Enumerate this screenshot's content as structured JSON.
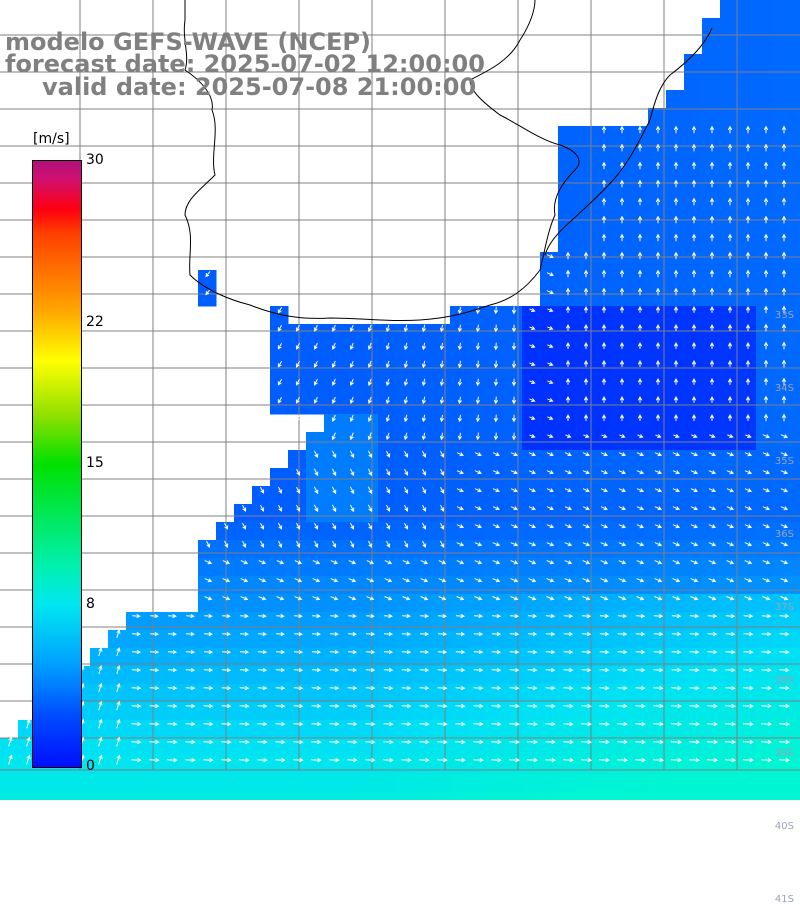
{
  "header": {
    "line1": "modelo GEFS-WAVE (NCEP)",
    "line2": "forecast date: 2025-07-02 12:00:00",
    "line3": "valid date: 2025-07-08 21:00:00"
  },
  "legend": {
    "unit": "[m/s]",
    "ticks": [
      {
        "label": "30",
        "value": 30
      },
      {
        "label": "22",
        "value": 22
      },
      {
        "label": "15",
        "value": 15
      },
      {
        "label": "8",
        "value": 8
      },
      {
        "label": "0",
        "value": 0
      }
    ],
    "range": [
      0,
      30
    ],
    "colors": [
      "#0010ff",
      "#00a0ff",
      "#00f0e0",
      "#00e000",
      "#ffff00",
      "#ff6000",
      "#ff0000",
      "#b0107a"
    ]
  },
  "map": {
    "land_color": "#ffffff",
    "grid_color": "#808080",
    "coast_color": "#000000",
    "arrow_color": "#ffffff",
    "lat_labels": [
      "33S",
      "34S",
      "35S",
      "36S",
      "37S",
      "38S",
      "39S",
      "40S",
      "41S"
    ]
  }
}
